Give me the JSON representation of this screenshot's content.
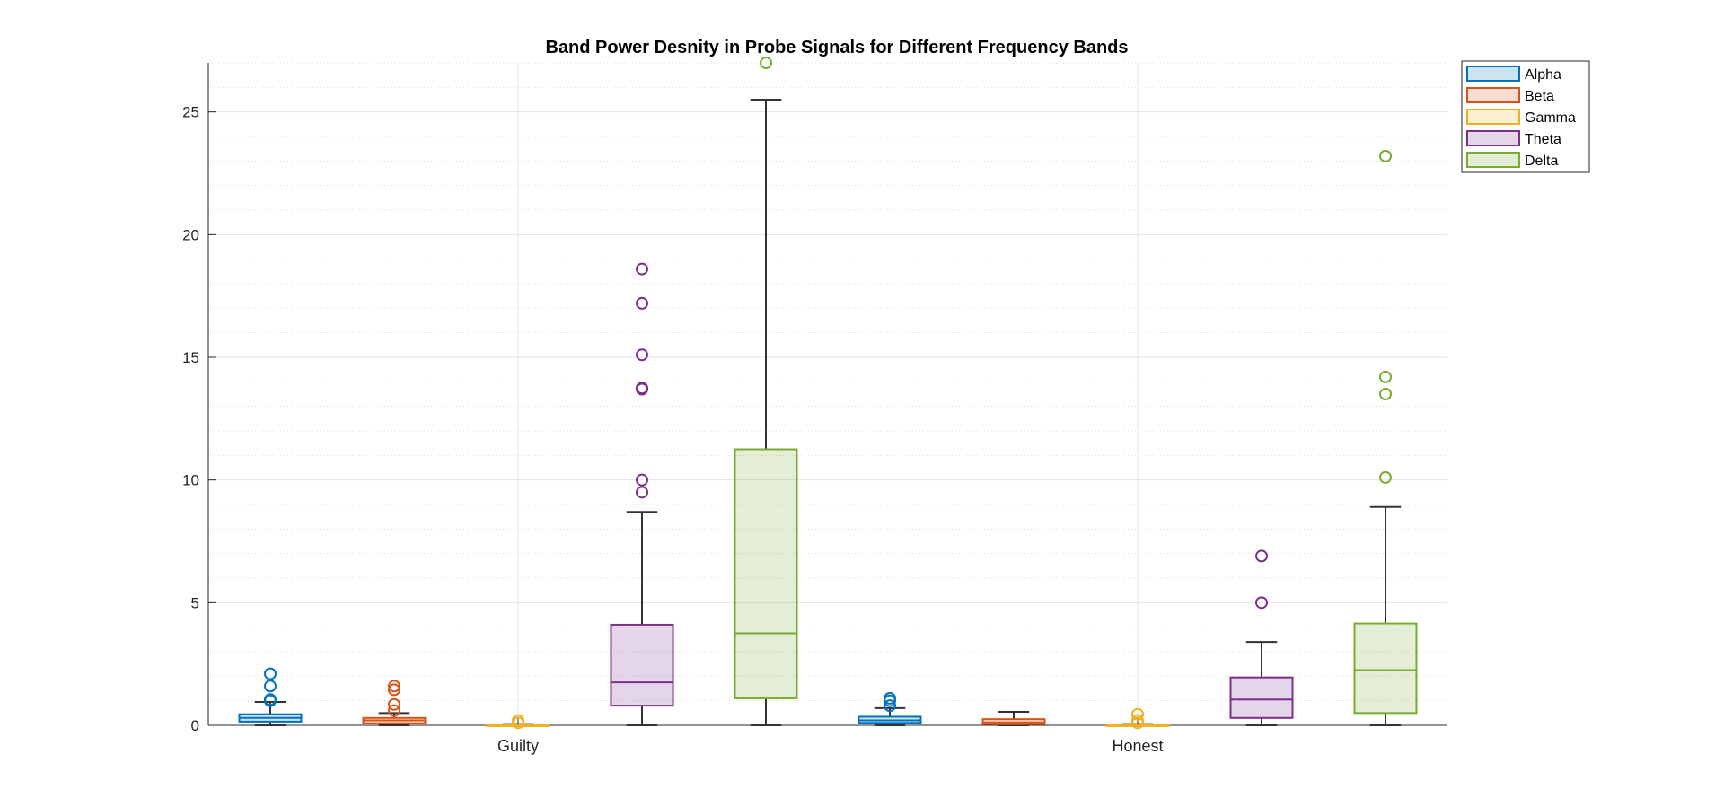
{
  "chart_data": {
    "type": "box",
    "title": "Band Power Desnity in Probe Signals for Different Frequency Bands",
    "xlabel": "",
    "ylabel": "",
    "ylim": [
      0,
      27
    ],
    "yticks": [
      0,
      5,
      10,
      15,
      20,
      25
    ],
    "ytick_labels": [
      "0",
      "5",
      "10",
      "15",
      "20",
      "25"
    ],
    "grid": true,
    "minor_grid": true,
    "legend_position": "top-right (outside plot)",
    "groups": [
      "Guilty",
      "Honest"
    ],
    "series": [
      {
        "name": "Alpha",
        "color": "#0072BD",
        "boxes": [
          {
            "group": "Guilty",
            "whisker_low": 0.0,
            "q1": 0.15,
            "median": 0.3,
            "q3": 0.45,
            "whisker_high": 0.95,
            "outliers": [
              1.0,
              1.05,
              1.6,
              2.1
            ]
          },
          {
            "group": "Honest",
            "whisker_low": 0.0,
            "q1": 0.1,
            "median": 0.2,
            "q3": 0.35,
            "whisker_high": 0.7,
            "outliers": [
              0.8,
              1.0,
              1.1
            ]
          }
        ]
      },
      {
        "name": "Beta",
        "color": "#D95319",
        "boxes": [
          {
            "group": "Guilty",
            "whisker_low": 0.0,
            "q1": 0.08,
            "median": 0.2,
            "q3": 0.3,
            "whisker_high": 0.5,
            "outliers": [
              0.6,
              0.85,
              1.45,
              1.6
            ]
          },
          {
            "group": "Honest",
            "whisker_low": 0.0,
            "q1": 0.05,
            "median": 0.12,
            "q3": 0.25,
            "whisker_high": 0.55,
            "outliers": []
          }
        ]
      },
      {
        "name": "Gamma",
        "color": "#EDB120",
        "boxes": [
          {
            "group": "Guilty",
            "whisker_low": 0.0,
            "q1": 0.0,
            "median": 0.01,
            "q3": 0.02,
            "whisker_high": 0.05,
            "outliers": [
              0.1,
              0.2
            ]
          },
          {
            "group": "Honest",
            "whisker_low": 0.0,
            "q1": 0.0,
            "median": 0.01,
            "q3": 0.02,
            "whisker_high": 0.05,
            "outliers": [
              0.1,
              0.2,
              0.45
            ]
          }
        ]
      },
      {
        "name": "Theta",
        "color": "#7E2F8E",
        "boxes": [
          {
            "group": "Guilty",
            "whisker_low": 0.0,
            "q1": 0.8,
            "median": 1.75,
            "q3": 4.1,
            "whisker_high": 8.7,
            "outliers": [
              9.5,
              10.0,
              13.7,
              13.75,
              15.1,
              17.2,
              18.6
            ]
          },
          {
            "group": "Honest",
            "whisker_low": 0.0,
            "q1": 0.3,
            "median": 1.05,
            "q3": 1.95,
            "whisker_high": 3.4,
            "outliers": [
              5.0,
              6.9
            ]
          }
        ]
      },
      {
        "name": "Delta",
        "color": "#77AC30",
        "boxes": [
          {
            "group": "Guilty",
            "whisker_low": 0.0,
            "q1": 1.1,
            "median": 3.75,
            "q3": 11.25,
            "whisker_high": 25.5,
            "outliers": [
              27.0
            ]
          },
          {
            "group": "Honest",
            "whisker_low": 0.0,
            "q1": 0.5,
            "median": 2.25,
            "q3": 4.15,
            "whisker_high": 8.9,
            "outliers": [
              10.1,
              13.5,
              14.2,
              23.2
            ]
          }
        ]
      }
    ]
  }
}
